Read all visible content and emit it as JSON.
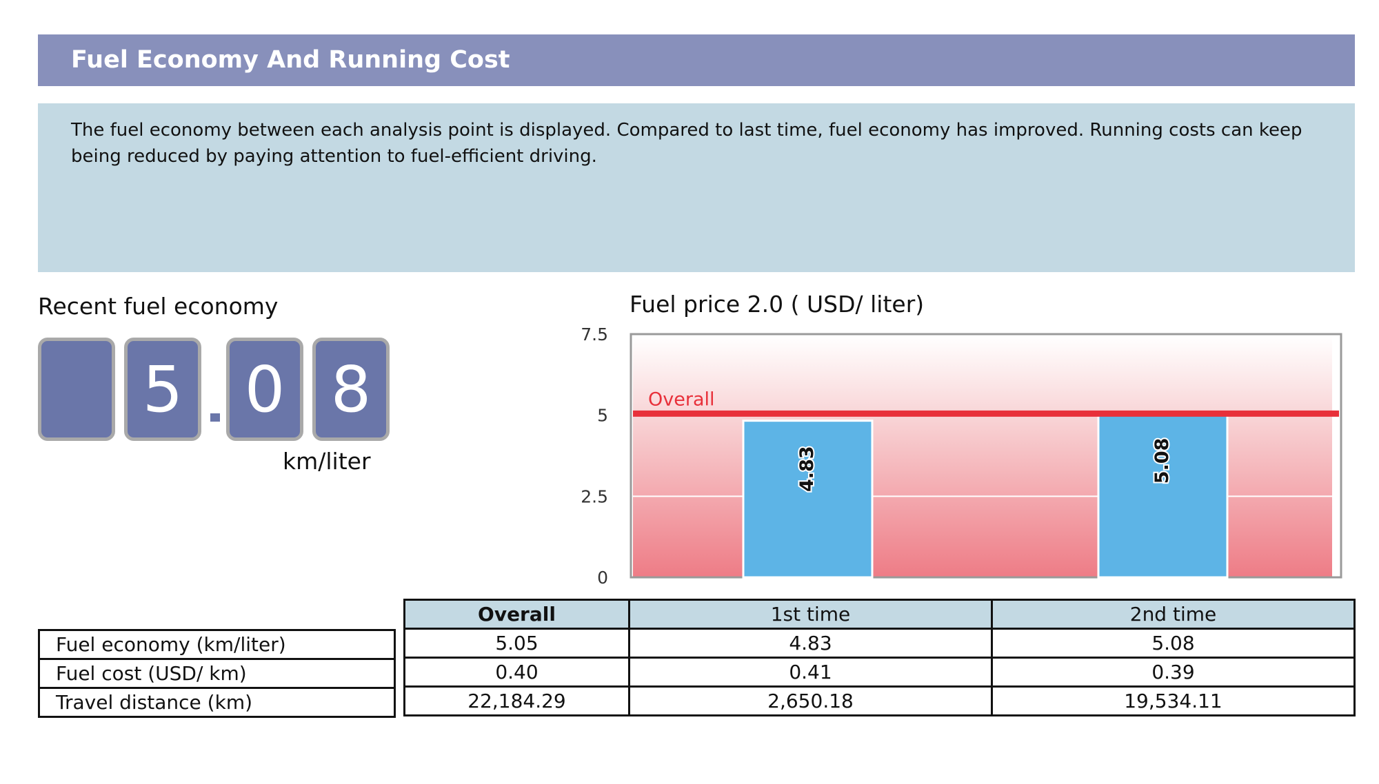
{
  "header": {
    "title": "Fuel Economy And Running Cost"
  },
  "description": {
    "text": "The fuel economy between each analysis point is displayed. Compared to last time, fuel economy has improved. Running costs can keep being reduced by paying attention to fuel-efficient driving."
  },
  "recent": {
    "title": "Recent fuel economy",
    "digits": [
      "",
      "5",
      "0",
      "8"
    ],
    "unit": "km/liter"
  },
  "colors": {
    "header": "#8890bb",
    "description_bg": "#c3d9e3",
    "digit_bg": "#6a76a9",
    "bar": "#5db4e6",
    "overall_line": "#e8303a",
    "table_header_bg": "#c3d9e3"
  },
  "chart_data": {
    "type": "bar",
    "title": "Fuel price 2.0 ( USD/ liter)",
    "xlabel": "",
    "ylabel": "",
    "ylim": [
      0,
      7.5
    ],
    "yticks": [
      "0",
      "2.5",
      "5",
      "7.5"
    ],
    "categories": [
      "1st time",
      "2nd time"
    ],
    "values": [
      4.83,
      5.08
    ],
    "value_labels": [
      "4.83",
      "5.08"
    ],
    "reference_line": {
      "label": "Overall",
      "value": 5.05
    },
    "grid": true
  },
  "table": {
    "headers": [
      "Overall",
      "1st time",
      "2nd time"
    ],
    "rows": [
      {
        "label": "Fuel economy (km/liter)",
        "values": [
          "5.05",
          "4.83",
          "5.08"
        ]
      },
      {
        "label": "Fuel cost (USD/ km)",
        "values": [
          "0.40",
          "0.41",
          "0.39"
        ]
      },
      {
        "label": "Travel distance (km)",
        "values": [
          "22,184.29",
          "2,650.18",
          "19,534.11"
        ]
      }
    ]
  }
}
